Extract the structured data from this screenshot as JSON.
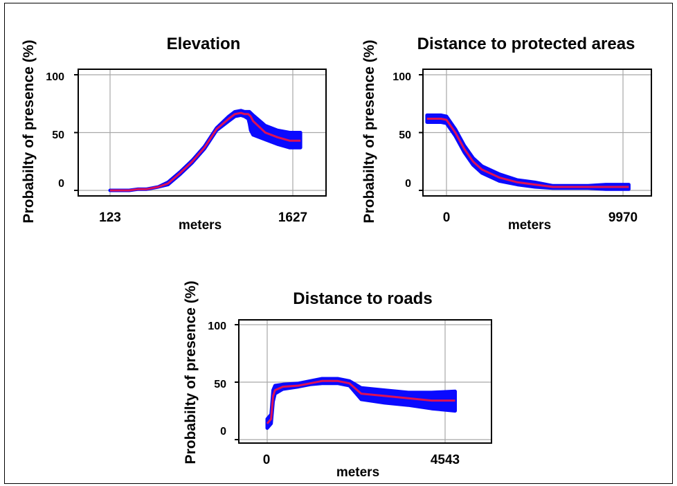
{
  "colors": {
    "band": "#0a0aff",
    "line": "#dd1156",
    "grid": "#a8a8a8",
    "axis": "#000000"
  },
  "chart_data": [
    {
      "id": "elevation",
      "type": "line",
      "title": "Elevation",
      "xlabel": "meters",
      "ylabel": "Probabilty of presence (%)",
      "ylim": [
        0,
        100
      ],
      "yticks": [
        "100",
        "50",
        "0"
      ],
      "xtick_labels": [
        "123",
        "1627"
      ],
      "grid": true,
      "series": [
        {
          "x": [
            123,
            200,
            280,
            350,
            420,
            470,
            520,
            600,
            700,
            800,
            900,
            1000,
            1100,
            1150,
            1200,
            1230,
            1260,
            1270,
            1280,
            1300,
            1400,
            1500,
            1600,
            1650,
            1690
          ],
          "y": [
            0,
            0,
            0,
            1,
            1,
            2,
            3,
            6,
            15,
            25,
            37,
            53,
            62,
            66,
            67,
            66,
            66,
            65,
            64,
            60,
            50,
            46,
            43,
            43,
            43
          ],
          "lower": [
            0,
            0,
            0,
            1,
            1,
            2,
            3,
            5,
            14,
            24,
            36,
            52,
            60,
            64,
            65,
            64,
            62,
            58,
            52,
            48,
            44,
            40,
            37,
            37,
            37
          ],
          "upper": [
            0,
            0,
            0,
            1,
            1,
            2,
            3,
            7,
            16,
            26,
            38,
            54,
            64,
            68,
            69,
            68,
            68,
            68,
            67,
            65,
            56,
            52,
            50,
            50,
            50
          ]
        }
      ]
    },
    {
      "id": "protected",
      "type": "line",
      "title": "Distance to protected areas",
      "xlabel": "meters",
      "ylabel": "Probabilty of presence (%)",
      "ylim": [
        0,
        100
      ],
      "yticks": [
        "100",
        "50",
        "0"
      ],
      "xtick_labels": [
        "0",
        "9970"
      ],
      "grid": true,
      "series": [
        {
          "x": [
            -1100,
            -300,
            0,
            500,
            1000,
            1500,
            2000,
            3000,
            4000,
            5000,
            6000,
            7000,
            8000,
            9000,
            9970,
            10300
          ],
          "y": [
            62,
            62,
            61,
            50,
            36,
            25,
            18,
            11,
            7,
            5,
            3,
            3,
            3,
            3,
            3,
            3
          ],
          "lower": [
            59,
            59,
            58,
            47,
            33,
            22,
            15,
            8,
            5,
            3,
            2,
            2,
            2,
            1,
            1,
            1
          ],
          "upper": [
            65,
            65,
            64,
            53,
            39,
            28,
            21,
            14,
            9,
            7,
            4,
            4,
            4,
            5,
            5,
            5
          ]
        }
      ]
    },
    {
      "id": "roads",
      "type": "line",
      "title": "Distance to roads",
      "xlabel": "meters",
      "ylabel": "Probabilty of presence (%)",
      "ylim": [
        0,
        100
      ],
      "yticks": [
        "100",
        "50",
        "0"
      ],
      "xtick_labels": [
        "0",
        "4543"
      ],
      "grid": true,
      "series": [
        {
          "x": [
            0,
            100,
            150,
            200,
            400,
            800,
            1100,
            1400,
            1800,
            2100,
            2400,
            3000,
            3600,
            4200,
            4800
          ],
          "y": [
            14,
            18,
            38,
            43,
            46,
            47,
            49,
            51,
            51,
            49,
            40,
            38,
            36,
            34,
            34
          ],
          "lower": [
            10,
            14,
            33,
            40,
            44,
            46,
            48,
            49,
            49,
            47,
            35,
            32,
            30,
            27,
            25
          ],
          "upper": [
            18,
            22,
            43,
            47,
            48,
            49,
            51,
            53,
            53,
            51,
            45,
            43,
            41,
            41,
            42
          ]
        }
      ]
    }
  ]
}
